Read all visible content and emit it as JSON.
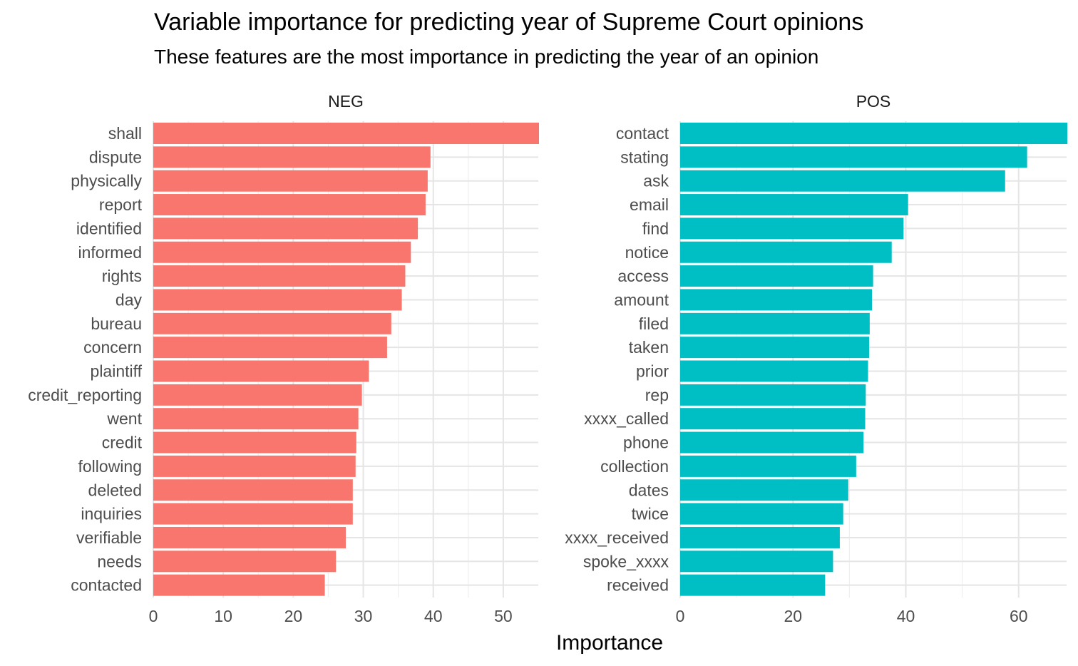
{
  "chart_data": {
    "type": "bar",
    "orientation": "horizontal",
    "title": "Variable importance for predicting year of Supreme Court opinions",
    "subtitle": "These features are the most importance in predicting the year of an opinion",
    "xlabel": "Importance",
    "ylabel": "",
    "grid": true,
    "legend": "none",
    "facets": [
      {
        "label": "NEG",
        "color": "#F8766D",
        "xlim": [
          0,
          55
        ],
        "ticks": [
          0,
          10,
          20,
          30,
          40,
          50
        ],
        "categories": [
          "shall",
          "dispute",
          "physically",
          "report",
          "identified",
          "informed",
          "rights",
          "day",
          "bureau",
          "concern",
          "plaintiff",
          "credit_reporting",
          "went",
          "credit",
          "following",
          "deleted",
          "inquiries",
          "verifiable",
          "needs",
          "contacted"
        ],
        "values": [
          55.3,
          39.6,
          39.2,
          38.9,
          37.8,
          36.8,
          36.0,
          35.5,
          34.0,
          33.4,
          30.8,
          29.8,
          29.3,
          29.0,
          28.9,
          28.5,
          28.5,
          27.5,
          26.1,
          24.5
        ]
      },
      {
        "label": "POS",
        "color": "#00BFC4",
        "xlim": [
          0,
          68.5
        ],
        "ticks": [
          0,
          20,
          40,
          60
        ],
        "categories": [
          "contact",
          "stating",
          "ask",
          "email",
          "find",
          "notice",
          "access",
          "amount",
          "filed",
          "taken",
          "prior",
          "rep",
          "xxxx_called",
          "phone",
          "collection",
          "dates",
          "twice",
          "xxxx_received",
          "spoke_xxxx",
          "received"
        ],
        "values": [
          68.8,
          61.5,
          57.6,
          40.4,
          39.6,
          37.5,
          34.2,
          34.0,
          33.6,
          33.5,
          33.3,
          32.9,
          32.8,
          32.5,
          31.2,
          29.8,
          28.9,
          28.3,
          27.1,
          25.7
        ]
      }
    ]
  }
}
